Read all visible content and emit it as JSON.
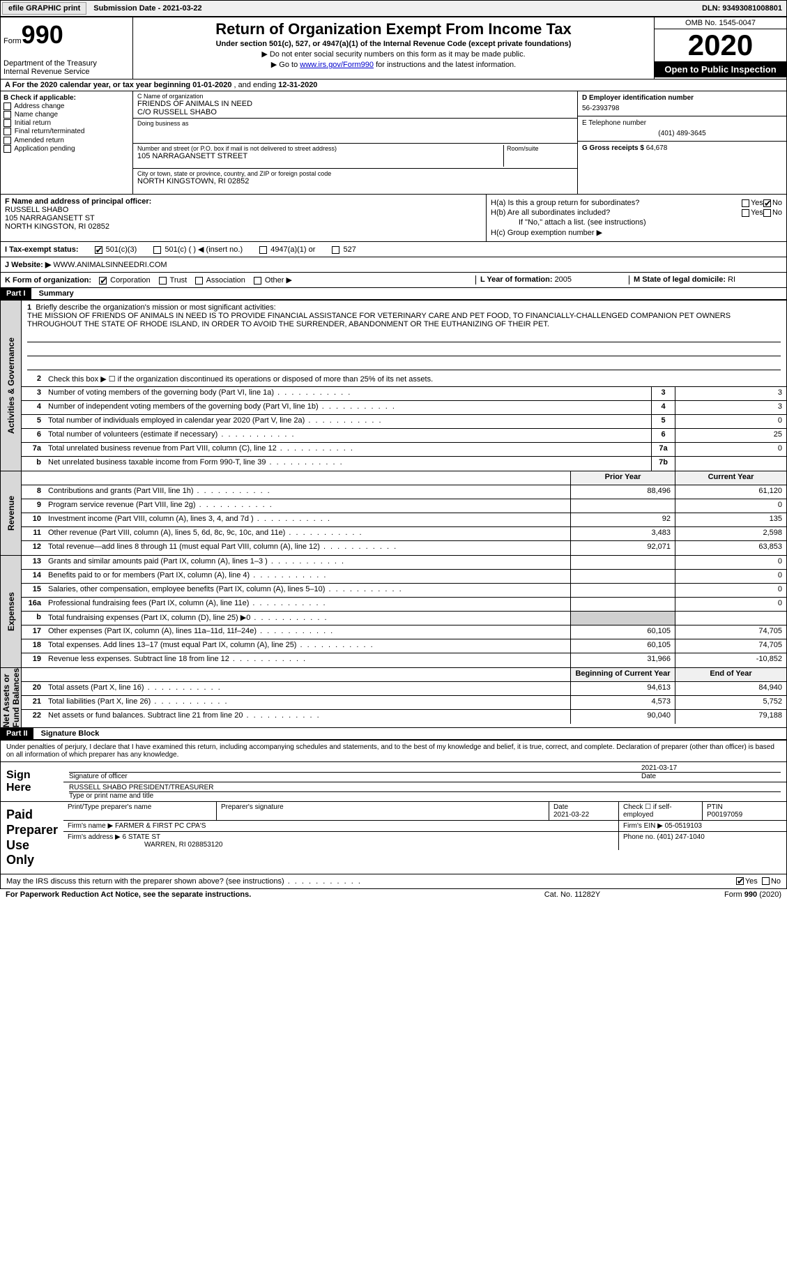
{
  "topbar": {
    "efile": "efile GRAPHIC print",
    "submission": "Submission Date - 2021-03-22",
    "dln": "DLN: 93493081008801"
  },
  "header": {
    "form_label": "Form",
    "form_no": "990",
    "dept": "Department of the Treasury\nInternal Revenue Service",
    "title": "Return of Organization Exempt From Income Tax",
    "sub1": "Under section 501(c), 527, or 4947(a)(1) of the Internal Revenue Code (except private foundations)",
    "sub2": "▶ Do not enter social security numbers on this form as it may be made public.",
    "sub3_pre": "▶ Go to ",
    "sub3_link": "www.irs.gov/Form990",
    "sub3_post": " for instructions and the latest information.",
    "omb": "OMB No. 1545-0047",
    "year": "2020",
    "inspect": "Open to Public Inspection"
  },
  "row_a": {
    "label": "A For the 2020 calendar year, or tax year beginning ",
    "begin": "01-01-2020",
    "mid": " , and ending ",
    "end": "12-31-2020"
  },
  "col_b": {
    "header": "B Check if applicable:",
    "items": [
      "Address change",
      "Name change",
      "Initial return",
      "Final return/terminated",
      "Amended return",
      "Application pending"
    ]
  },
  "col_c": {
    "name_label": "C Name of organization",
    "name": "FRIENDS OF ANIMALS IN NEED",
    "co": "C/O RUSSELL SHABO",
    "dba_label": "Doing business as",
    "street_label": "Number and street (or P.O. box if mail is not delivered to street address)",
    "room_label": "Room/suite",
    "street": "105 NARRAGANSETT STREET",
    "city_label": "City or town, state or province, country, and ZIP or foreign postal code",
    "city": "NORTH KINGSTOWN, RI  02852"
  },
  "col_d": {
    "ein_label": "D Employer identification number",
    "ein": "56-2393798",
    "phone_label": "E Telephone number",
    "phone": "(401) 489-3645",
    "gross_label": "G Gross receipts $ ",
    "gross": "64,678"
  },
  "col_f": {
    "label": "F Name and address of principal officer:",
    "name": "RUSSELL SHABO",
    "street": "105 NARRAGANSETT ST",
    "city": "NORTH KINGSTON, RI  02852"
  },
  "col_h": {
    "ha": "H(a)  Is this a group return for subordinates?",
    "hb": "H(b)  Are all subordinates included?",
    "hb_note": "If \"No,\" attach a list. (see instructions)",
    "hc": "H(c)  Group exemption number ▶"
  },
  "row_i": {
    "label": "I  Tax-exempt status:",
    "opts": [
      "501(c)(3)",
      "501(c) (  ) ◀ (insert no.)",
      "4947(a)(1) or",
      "527"
    ]
  },
  "row_j": {
    "label": "J  Website: ▶ ",
    "val": "WWW.ANIMALSINNEEDRI.COM"
  },
  "row_k": {
    "label": "K Form of organization:",
    "opts": [
      "Corporation",
      "Trust",
      "Association",
      "Other ▶"
    ],
    "year_label": "L Year of formation: ",
    "year": "2005",
    "state_label": "M State of legal domicile: ",
    "state": "RI"
  },
  "part1": {
    "hdr": "Part I",
    "title": "Summary",
    "line1_label": "Briefly describe the organization's mission or most significant activities:",
    "mission": "THE MISSION OF FRIENDS OF ANIMALS IN NEED IS TO PROVIDE FINANCIAL ASSISTANCE FOR VETERINARY CARE AND PET FOOD, TO FINANCIALLY-CHALLENGED COMPANION PET OWNERS THROUGHOUT THE STATE OF RHODE ISLAND, IN ORDER TO AVOID THE SURRENDER, ABANDONMENT OR THE EUTHANIZING OF THEIR PET.",
    "line2": "Check this box ▶ ☐ if the organization discontinued its operations or disposed of more than 25% of its net assets.",
    "gov_lines": [
      {
        "n": "3",
        "d": "Number of voting members of the governing body (Part VI, line 1a)",
        "b": "3",
        "v": "3"
      },
      {
        "n": "4",
        "d": "Number of independent voting members of the governing body (Part VI, line 1b)",
        "b": "4",
        "v": "3"
      },
      {
        "n": "5",
        "d": "Total number of individuals employed in calendar year 2020 (Part V, line 2a)",
        "b": "5",
        "v": "0"
      },
      {
        "n": "6",
        "d": "Total number of volunteers (estimate if necessary)",
        "b": "6",
        "v": "25"
      },
      {
        "n": "7a",
        "d": "Total unrelated business revenue from Part VIII, column (C), line 12",
        "b": "7a",
        "v": "0"
      },
      {
        "n": "b",
        "d": "Net unrelated business taxable income from Form 990-T, line 39",
        "b": "7b",
        "v": ""
      }
    ],
    "rev_hdr": {
      "py": "Prior Year",
      "cy": "Current Year"
    },
    "rev_lines": [
      {
        "n": "8",
        "d": "Contributions and grants (Part VIII, line 1h)",
        "py": "88,496",
        "cy": "61,120"
      },
      {
        "n": "9",
        "d": "Program service revenue (Part VIII, line 2g)",
        "py": "",
        "cy": "0"
      },
      {
        "n": "10",
        "d": "Investment income (Part VIII, column (A), lines 3, 4, and 7d )",
        "py": "92",
        "cy": "135"
      },
      {
        "n": "11",
        "d": "Other revenue (Part VIII, column (A), lines 5, 6d, 8c, 9c, 10c, and 11e)",
        "py": "3,483",
        "cy": "2,598"
      },
      {
        "n": "12",
        "d": "Total revenue—add lines 8 through 11 (must equal Part VIII, column (A), line 12)",
        "py": "92,071",
        "cy": "63,853"
      }
    ],
    "exp_lines": [
      {
        "n": "13",
        "d": "Grants and similar amounts paid (Part IX, column (A), lines 1–3 )",
        "py": "",
        "cy": "0"
      },
      {
        "n": "14",
        "d": "Benefits paid to or for members (Part IX, column (A), line 4)",
        "py": "",
        "cy": "0"
      },
      {
        "n": "15",
        "d": "Salaries, other compensation, employee benefits (Part IX, column (A), lines 5–10)",
        "py": "",
        "cy": "0"
      },
      {
        "n": "16a",
        "d": "Professional fundraising fees (Part IX, column (A), line 11e)",
        "py": "",
        "cy": "0"
      },
      {
        "n": "b",
        "d": "Total fundraising expenses (Part IX, column (D), line 25) ▶0",
        "py": "",
        "cy": "",
        "shade": true
      },
      {
        "n": "17",
        "d": "Other expenses (Part IX, column (A), lines 11a–11d, 11f–24e)",
        "py": "60,105",
        "cy": "74,705"
      },
      {
        "n": "18",
        "d": "Total expenses. Add lines 13–17 (must equal Part IX, column (A), line 25)",
        "py": "60,105",
        "cy": "74,705"
      },
      {
        "n": "19",
        "d": "Revenue less expenses. Subtract line 18 from line 12",
        "py": "31,966",
        "cy": "-10,852"
      }
    ],
    "na_hdr": {
      "py": "Beginning of Current Year",
      "cy": "End of Year"
    },
    "na_lines": [
      {
        "n": "20",
        "d": "Total assets (Part X, line 16)",
        "py": "94,613",
        "cy": "84,940"
      },
      {
        "n": "21",
        "d": "Total liabilities (Part X, line 26)",
        "py": "4,573",
        "cy": "5,752"
      },
      {
        "n": "22",
        "d": "Net assets or fund balances. Subtract line 21 from line 20",
        "py": "90,040",
        "cy": "79,188"
      }
    ],
    "vtabs": {
      "gov": "Activities & Governance",
      "rev": "Revenue",
      "exp": "Expenses",
      "na": "Net Assets or\nFund Balances"
    }
  },
  "part2": {
    "hdr": "Part II",
    "title": "Signature Block",
    "intro": "Under penalties of perjury, I declare that I have examined this return, including accompanying schedules and statements, and to the best of my knowledge and belief, it is true, correct, and complete. Declaration of preparer (other than officer) is based on all information of which preparer has any knowledge.",
    "sign_here": "Sign Here",
    "sig_officer": "Signature of officer",
    "sig_date": "2021-03-17",
    "date_label": "Date",
    "officer_name": "RUSSELL SHABO  PRESIDENT/TREASURER",
    "name_label": "Type or print name and title",
    "paid": "Paid Preparer Use Only",
    "prep_name_label": "Print/Type preparer's name",
    "prep_sig_label": "Preparer's signature",
    "prep_date_label": "Date",
    "prep_date": "2021-03-22",
    "self_emp": "Check ☐ if self-employed",
    "ptin_label": "PTIN",
    "ptin": "P00197059",
    "firm_name_label": "Firm's name    ▶ ",
    "firm_name": "FARMER & FIRST PC CPA'S",
    "firm_ein_label": "Firm's EIN ▶ ",
    "firm_ein": "05-0519103",
    "firm_addr_label": "Firm's address ▶ ",
    "firm_addr": "6 STATE ST",
    "firm_city": "WARREN, RI  028853120",
    "firm_phone_label": "Phone no. ",
    "firm_phone": "(401) 247-1040"
  },
  "discuss": {
    "q": "May the IRS discuss this return with the preparer shown above? (see instructions)",
    "yes": "Yes",
    "no": "No"
  },
  "footer": {
    "l": "For Paperwork Reduction Act Notice, see the separate instructions.",
    "m": "Cat. No. 11282Y",
    "r": "Form 990 (2020)"
  }
}
